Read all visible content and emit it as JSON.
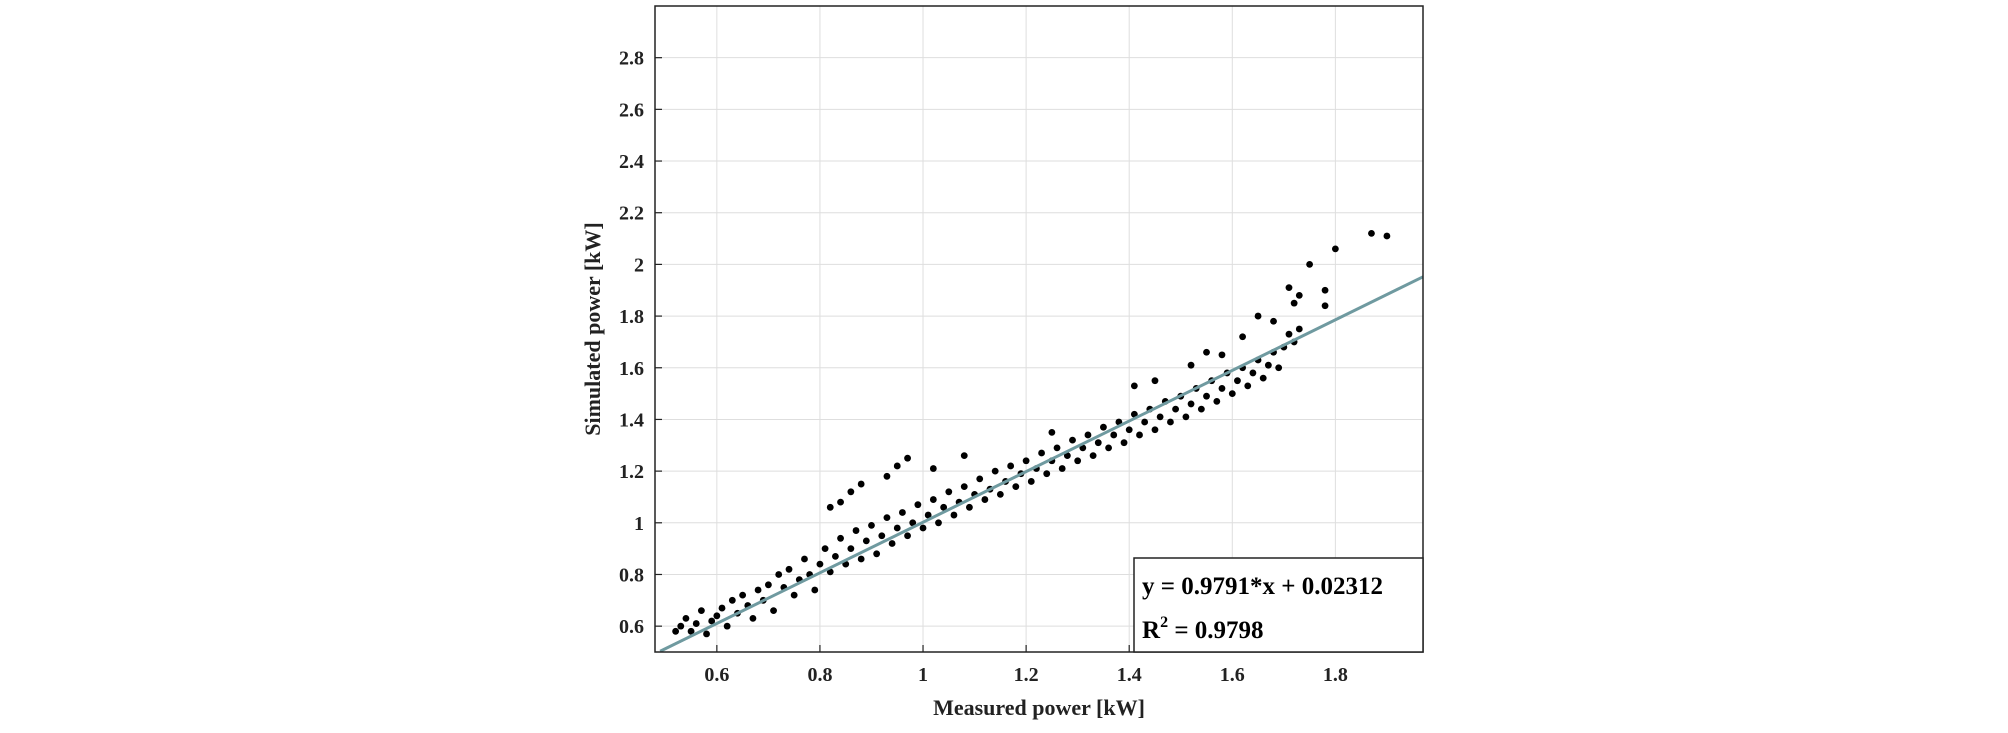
{
  "chart_data": {
    "type": "scatter",
    "title": "",
    "xlabel": "Measured power [kW]",
    "ylabel": "Simulated power [kW]",
    "xlim": [
      0.48,
      1.97
    ],
    "ylim": [
      0.5,
      3.0
    ],
    "xticks": [
      0.6,
      0.8,
      1,
      1.2,
      1.4,
      1.6,
      1.8
    ],
    "xtick_labels": [
      "0.6",
      "0.8",
      "1",
      "1.2",
      "1.4",
      "1.6",
      "1.8"
    ],
    "yticks": [
      0.6,
      0.8,
      1,
      1.2,
      1.4,
      1.6,
      1.8,
      2,
      2.2,
      2.4,
      2.6,
      2.8
    ],
    "ytick_labels": [
      "0.6",
      "0.8",
      "1",
      "1.2",
      "1.4",
      "1.6",
      "1.8",
      "2",
      "2.2",
      "2.4",
      "2.6",
      "2.8"
    ],
    "grid": true,
    "marker_color": "#000000",
    "fit_color": "#6f9aa0",
    "fit": {
      "slope": 0.9791,
      "intercept": 0.02312
    },
    "points": [
      [
        0.52,
        0.58
      ],
      [
        0.53,
        0.6
      ],
      [
        0.54,
        0.63
      ],
      [
        0.55,
        0.58
      ],
      [
        0.56,
        0.61
      ],
      [
        0.57,
        0.66
      ],
      [
        0.58,
        0.57
      ],
      [
        0.59,
        0.62
      ],
      [
        0.6,
        0.64
      ],
      [
        0.61,
        0.67
      ],
      [
        0.62,
        0.6
      ],
      [
        0.63,
        0.7
      ],
      [
        0.64,
        0.65
      ],
      [
        0.65,
        0.72
      ],
      [
        0.66,
        0.68
      ],
      [
        0.67,
        0.63
      ],
      [
        0.68,
        0.74
      ],
      [
        0.69,
        0.7
      ],
      [
        0.7,
        0.76
      ],
      [
        0.71,
        0.66
      ],
      [
        0.72,
        0.8
      ],
      [
        0.73,
        0.75
      ],
      [
        0.74,
        0.82
      ],
      [
        0.75,
        0.72
      ],
      [
        0.76,
        0.78
      ],
      [
        0.77,
        0.86
      ],
      [
        0.78,
        0.8
      ],
      [
        0.79,
        0.74
      ],
      [
        0.8,
        0.84
      ],
      [
        0.81,
        0.9
      ],
      [
        0.82,
        0.81
      ],
      [
        0.83,
        0.87
      ],
      [
        0.84,
        0.94
      ],
      [
        0.85,
        0.84
      ],
      [
        0.86,
        0.9
      ],
      [
        0.87,
        0.97
      ],
      [
        0.88,
        0.86
      ],
      [
        0.89,
        0.93
      ],
      [
        0.9,
        0.99
      ],
      [
        0.91,
        0.88
      ],
      [
        0.92,
        0.95
      ],
      [
        0.93,
        1.02
      ],
      [
        0.94,
        0.92
      ],
      [
        0.95,
        0.98
      ],
      [
        0.96,
        1.04
      ],
      [
        0.97,
        0.95
      ],
      [
        0.98,
        1.0
      ],
      [
        0.99,
        1.07
      ],
      [
        1.0,
        0.98
      ],
      [
        1.01,
        1.03
      ],
      [
        1.02,
        1.09
      ],
      [
        1.03,
        1.0
      ],
      [
        1.04,
        1.06
      ],
      [
        1.05,
        1.12
      ],
      [
        1.06,
        1.03
      ],
      [
        1.07,
        1.08
      ],
      [
        1.08,
        1.14
      ],
      [
        1.09,
        1.06
      ],
      [
        1.1,
        1.11
      ],
      [
        1.11,
        1.17
      ],
      [
        1.12,
        1.09
      ],
      [
        1.13,
        1.13
      ],
      [
        1.14,
        1.2
      ],
      [
        1.15,
        1.11
      ],
      [
        1.16,
        1.16
      ],
      [
        1.17,
        1.22
      ],
      [
        1.18,
        1.14
      ],
      [
        1.19,
        1.19
      ],
      [
        1.2,
        1.24
      ],
      [
        1.21,
        1.16
      ],
      [
        1.22,
        1.21
      ],
      [
        1.23,
        1.27
      ],
      [
        1.24,
        1.19
      ],
      [
        1.25,
        1.24
      ],
      [
        1.26,
        1.29
      ],
      [
        1.27,
        1.21
      ],
      [
        1.28,
        1.26
      ],
      [
        1.29,
        1.32
      ],
      [
        1.3,
        1.24
      ],
      [
        1.31,
        1.29
      ],
      [
        1.32,
        1.34
      ],
      [
        1.33,
        1.26
      ],
      [
        1.34,
        1.31
      ],
      [
        1.35,
        1.37
      ],
      [
        1.36,
        1.29
      ],
      [
        1.37,
        1.34
      ],
      [
        1.38,
        1.39
      ],
      [
        1.39,
        1.31
      ],
      [
        1.4,
        1.36
      ],
      [
        1.41,
        1.42
      ],
      [
        1.42,
        1.34
      ],
      [
        1.43,
        1.39
      ],
      [
        1.44,
        1.44
      ],
      [
        1.45,
        1.36
      ],
      [
        1.46,
        1.41
      ],
      [
        1.47,
        1.47
      ],
      [
        1.48,
        1.39
      ],
      [
        1.49,
        1.44
      ],
      [
        1.5,
        1.49
      ],
      [
        1.51,
        1.41
      ],
      [
        1.52,
        1.46
      ],
      [
        1.53,
        1.52
      ],
      [
        1.54,
        1.44
      ],
      [
        1.55,
        1.49
      ],
      [
        1.56,
        1.55
      ],
      [
        1.57,
        1.47
      ],
      [
        1.58,
        1.52
      ],
      [
        1.59,
        1.58
      ],
      [
        1.6,
        1.5
      ],
      [
        1.61,
        1.55
      ],
      [
        1.62,
        1.6
      ],
      [
        1.63,
        1.53
      ],
      [
        1.64,
        1.58
      ],
      [
        1.65,
        1.63
      ],
      [
        1.66,
        1.56
      ],
      [
        1.67,
        1.61
      ],
      [
        1.68,
        1.66
      ],
      [
        1.69,
        1.6
      ],
      [
        1.7,
        1.68
      ],
      [
        1.71,
        1.73
      ],
      [
        1.72,
        1.7
      ],
      [
        1.73,
        1.75
      ],
      [
        0.86,
        1.12
      ],
      [
        0.88,
        1.15
      ],
      [
        0.84,
        1.08
      ],
      [
        0.82,
        1.06
      ],
      [
        0.95,
        1.22
      ],
      [
        0.97,
        1.25
      ],
      [
        0.93,
        1.18
      ],
      [
        1.02,
        1.21
      ],
      [
        1.08,
        1.26
      ],
      [
        1.25,
        1.35
      ],
      [
        1.41,
        1.53
      ],
      [
        1.45,
        1.55
      ],
      [
        1.52,
        1.61
      ],
      [
        1.55,
        1.66
      ],
      [
        1.58,
        1.65
      ],
      [
        1.62,
        1.72
      ],
      [
        1.65,
        1.8
      ],
      [
        1.68,
        1.78
      ],
      [
        1.72,
        1.85
      ],
      [
        1.71,
        1.91
      ],
      [
        1.73,
        1.88
      ],
      [
        1.78,
        1.84
      ],
      [
        1.78,
        1.9
      ],
      [
        1.75,
        2.0
      ],
      [
        1.8,
        2.06
      ],
      [
        1.87,
        2.12
      ],
      [
        1.9,
        2.11
      ]
    ],
    "annotation": {
      "equation": "y = 0.9791*x + 0.02312",
      "r2_prefix": "R",
      "r2_sup": "2",
      "r2_value": " = 0.9798"
    }
  }
}
